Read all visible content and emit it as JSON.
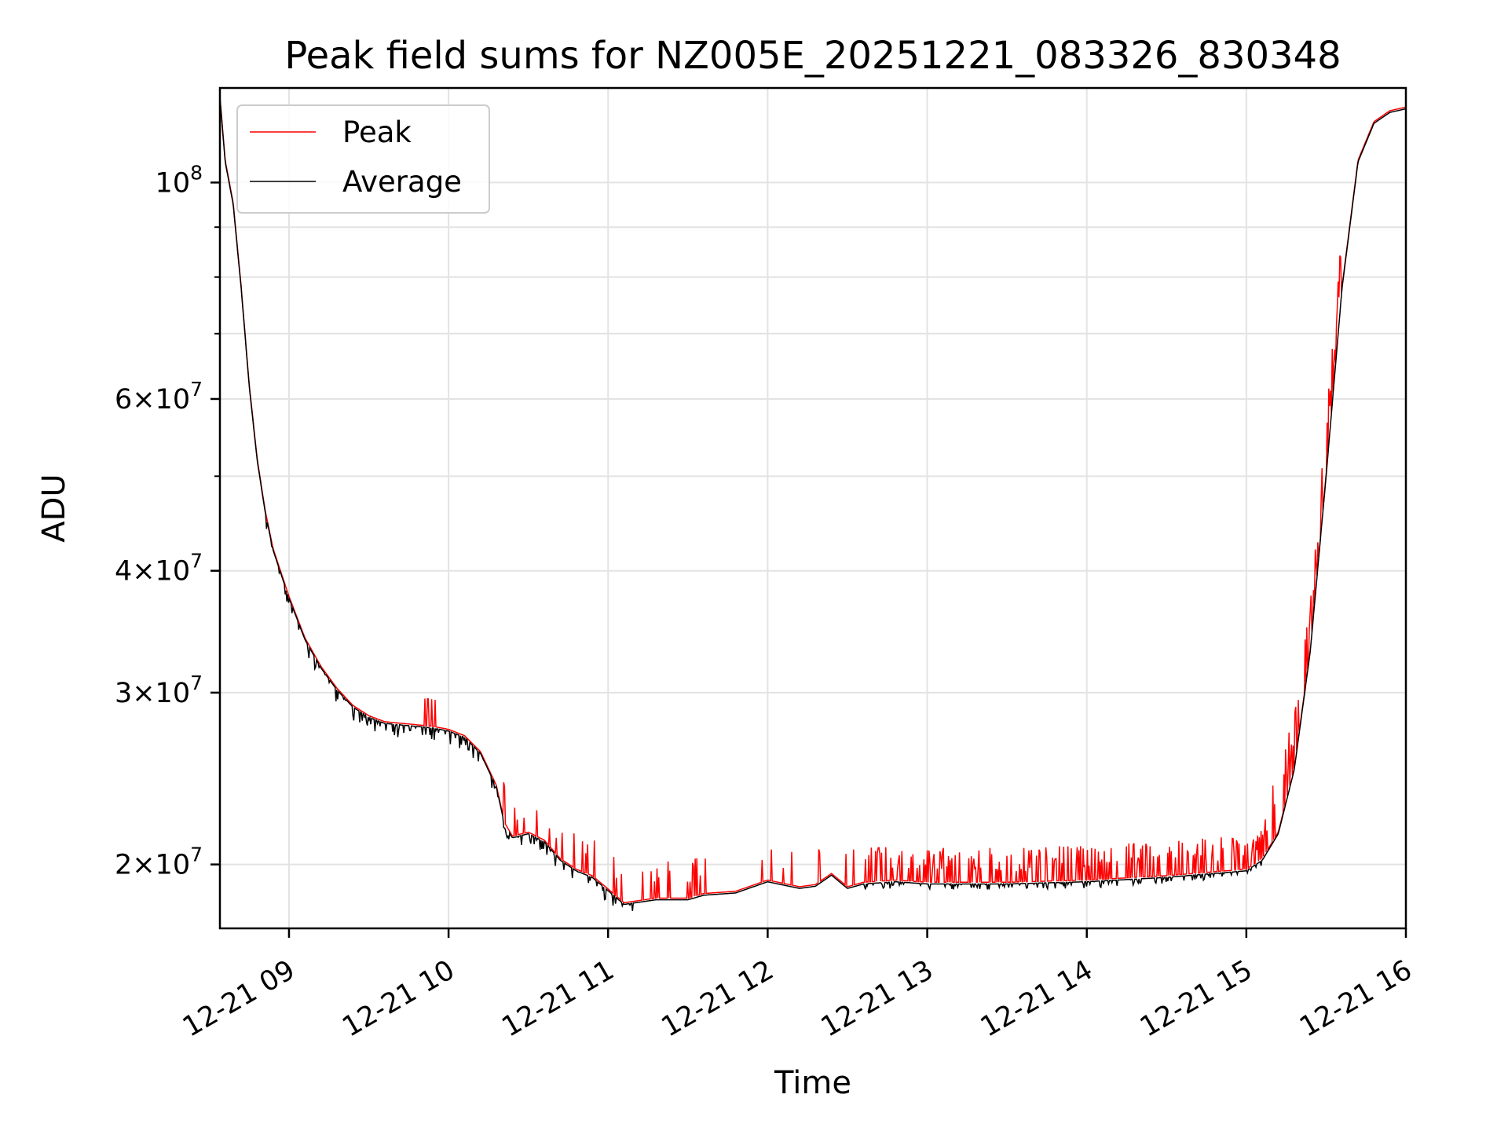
{
  "chart_data": {
    "type": "line",
    "title": "Peak field sums for NZ005E_20251221_083326_830348",
    "xlabel": "Time",
    "ylabel": "ADU",
    "yscale": "log",
    "grid": true,
    "legend_position": "top-left",
    "xlim_hours": [
      8.567,
      16.0
    ],
    "ylim": [
      17200000,
      125000000
    ],
    "x_ticks": [
      {
        "value": 9,
        "label": "12-21 09"
      },
      {
        "value": 10,
        "label": "12-21 10"
      },
      {
        "value": 11,
        "label": "12-21 11"
      },
      {
        "value": 12,
        "label": "12-21 12"
      },
      {
        "value": 13,
        "label": "12-21 13"
      },
      {
        "value": 14,
        "label": "12-21 14"
      },
      {
        "value": 15,
        "label": "12-21 15"
      },
      {
        "value": 16,
        "label": "12-21 16"
      }
    ],
    "y_ticks": [
      {
        "value": 20000000,
        "mantissa": "2",
        "exponent": "7"
      },
      {
        "value": 30000000,
        "mantissa": "3",
        "exponent": "7"
      },
      {
        "value": 40000000,
        "mantissa": "4",
        "exponent": "7"
      },
      {
        "value": 60000000,
        "mantissa": "6",
        "exponent": "7"
      },
      {
        "value": 100000000,
        "mantissa": "",
        "exponent": "8"
      }
    ],
    "y_minor_ticks": [
      50000000,
      70000000,
      80000000,
      90000000
    ],
    "series": [
      {
        "name": "Peak",
        "color": "#ff0000",
        "legend_label": "Peak"
      },
      {
        "name": "Average",
        "color": "#000000",
        "legend_label": "Average"
      }
    ],
    "baseline_points": [
      [
        8.567,
        122000000
      ],
      [
        8.6,
        105000000
      ],
      [
        8.65,
        95000000
      ],
      [
        8.7,
        78000000
      ],
      [
        8.75,
        62000000
      ],
      [
        8.8,
        52000000
      ],
      [
        8.85,
        46000000
      ],
      [
        8.9,
        42000000
      ],
      [
        9.0,
        37500000
      ],
      [
        9.1,
        34000000
      ],
      [
        9.2,
        31800000
      ],
      [
        9.3,
        30200000
      ],
      [
        9.4,
        29000000
      ],
      [
        9.5,
        28300000
      ],
      [
        9.6,
        27900000
      ],
      [
        9.8,
        27700000
      ],
      [
        9.9,
        27600000
      ],
      [
        10.0,
        27400000
      ],
      [
        10.1,
        27000000
      ],
      [
        10.2,
        26000000
      ],
      [
        10.3,
        24000000
      ],
      [
        10.35,
        22000000
      ],
      [
        10.4,
        21300000
      ],
      [
        10.5,
        21500000
      ],
      [
        10.6,
        21100000
      ],
      [
        10.7,
        20200000
      ],
      [
        10.8,
        19700000
      ],
      [
        10.9,
        19400000
      ],
      [
        11.0,
        18800000
      ],
      [
        11.1,
        18200000
      ],
      [
        11.2,
        18300000
      ],
      [
        11.3,
        18400000
      ],
      [
        11.5,
        18400000
      ],
      [
        11.6,
        18600000
      ],
      [
        11.8,
        18700000
      ],
      [
        12.0,
        19200000
      ],
      [
        12.2,
        18900000
      ],
      [
        12.3,
        19000000
      ],
      [
        12.4,
        19500000
      ],
      [
        12.5,
        18900000
      ],
      [
        12.6,
        19100000
      ],
      [
        12.8,
        19200000
      ],
      [
        13.0,
        19100000
      ],
      [
        13.5,
        19100000
      ],
      [
        14.0,
        19200000
      ],
      [
        14.5,
        19400000
      ],
      [
        15.0,
        19700000
      ],
      [
        15.1,
        20200000
      ],
      [
        15.2,
        21500000
      ],
      [
        15.3,
        25000000
      ],
      [
        15.4,
        33000000
      ],
      [
        15.5,
        50000000
      ],
      [
        15.6,
        78000000
      ],
      [
        15.7,
        105000000
      ],
      [
        15.8,
        115000000
      ],
      [
        15.9,
        118000000
      ],
      [
        16.0,
        119000000
      ]
    ]
  }
}
